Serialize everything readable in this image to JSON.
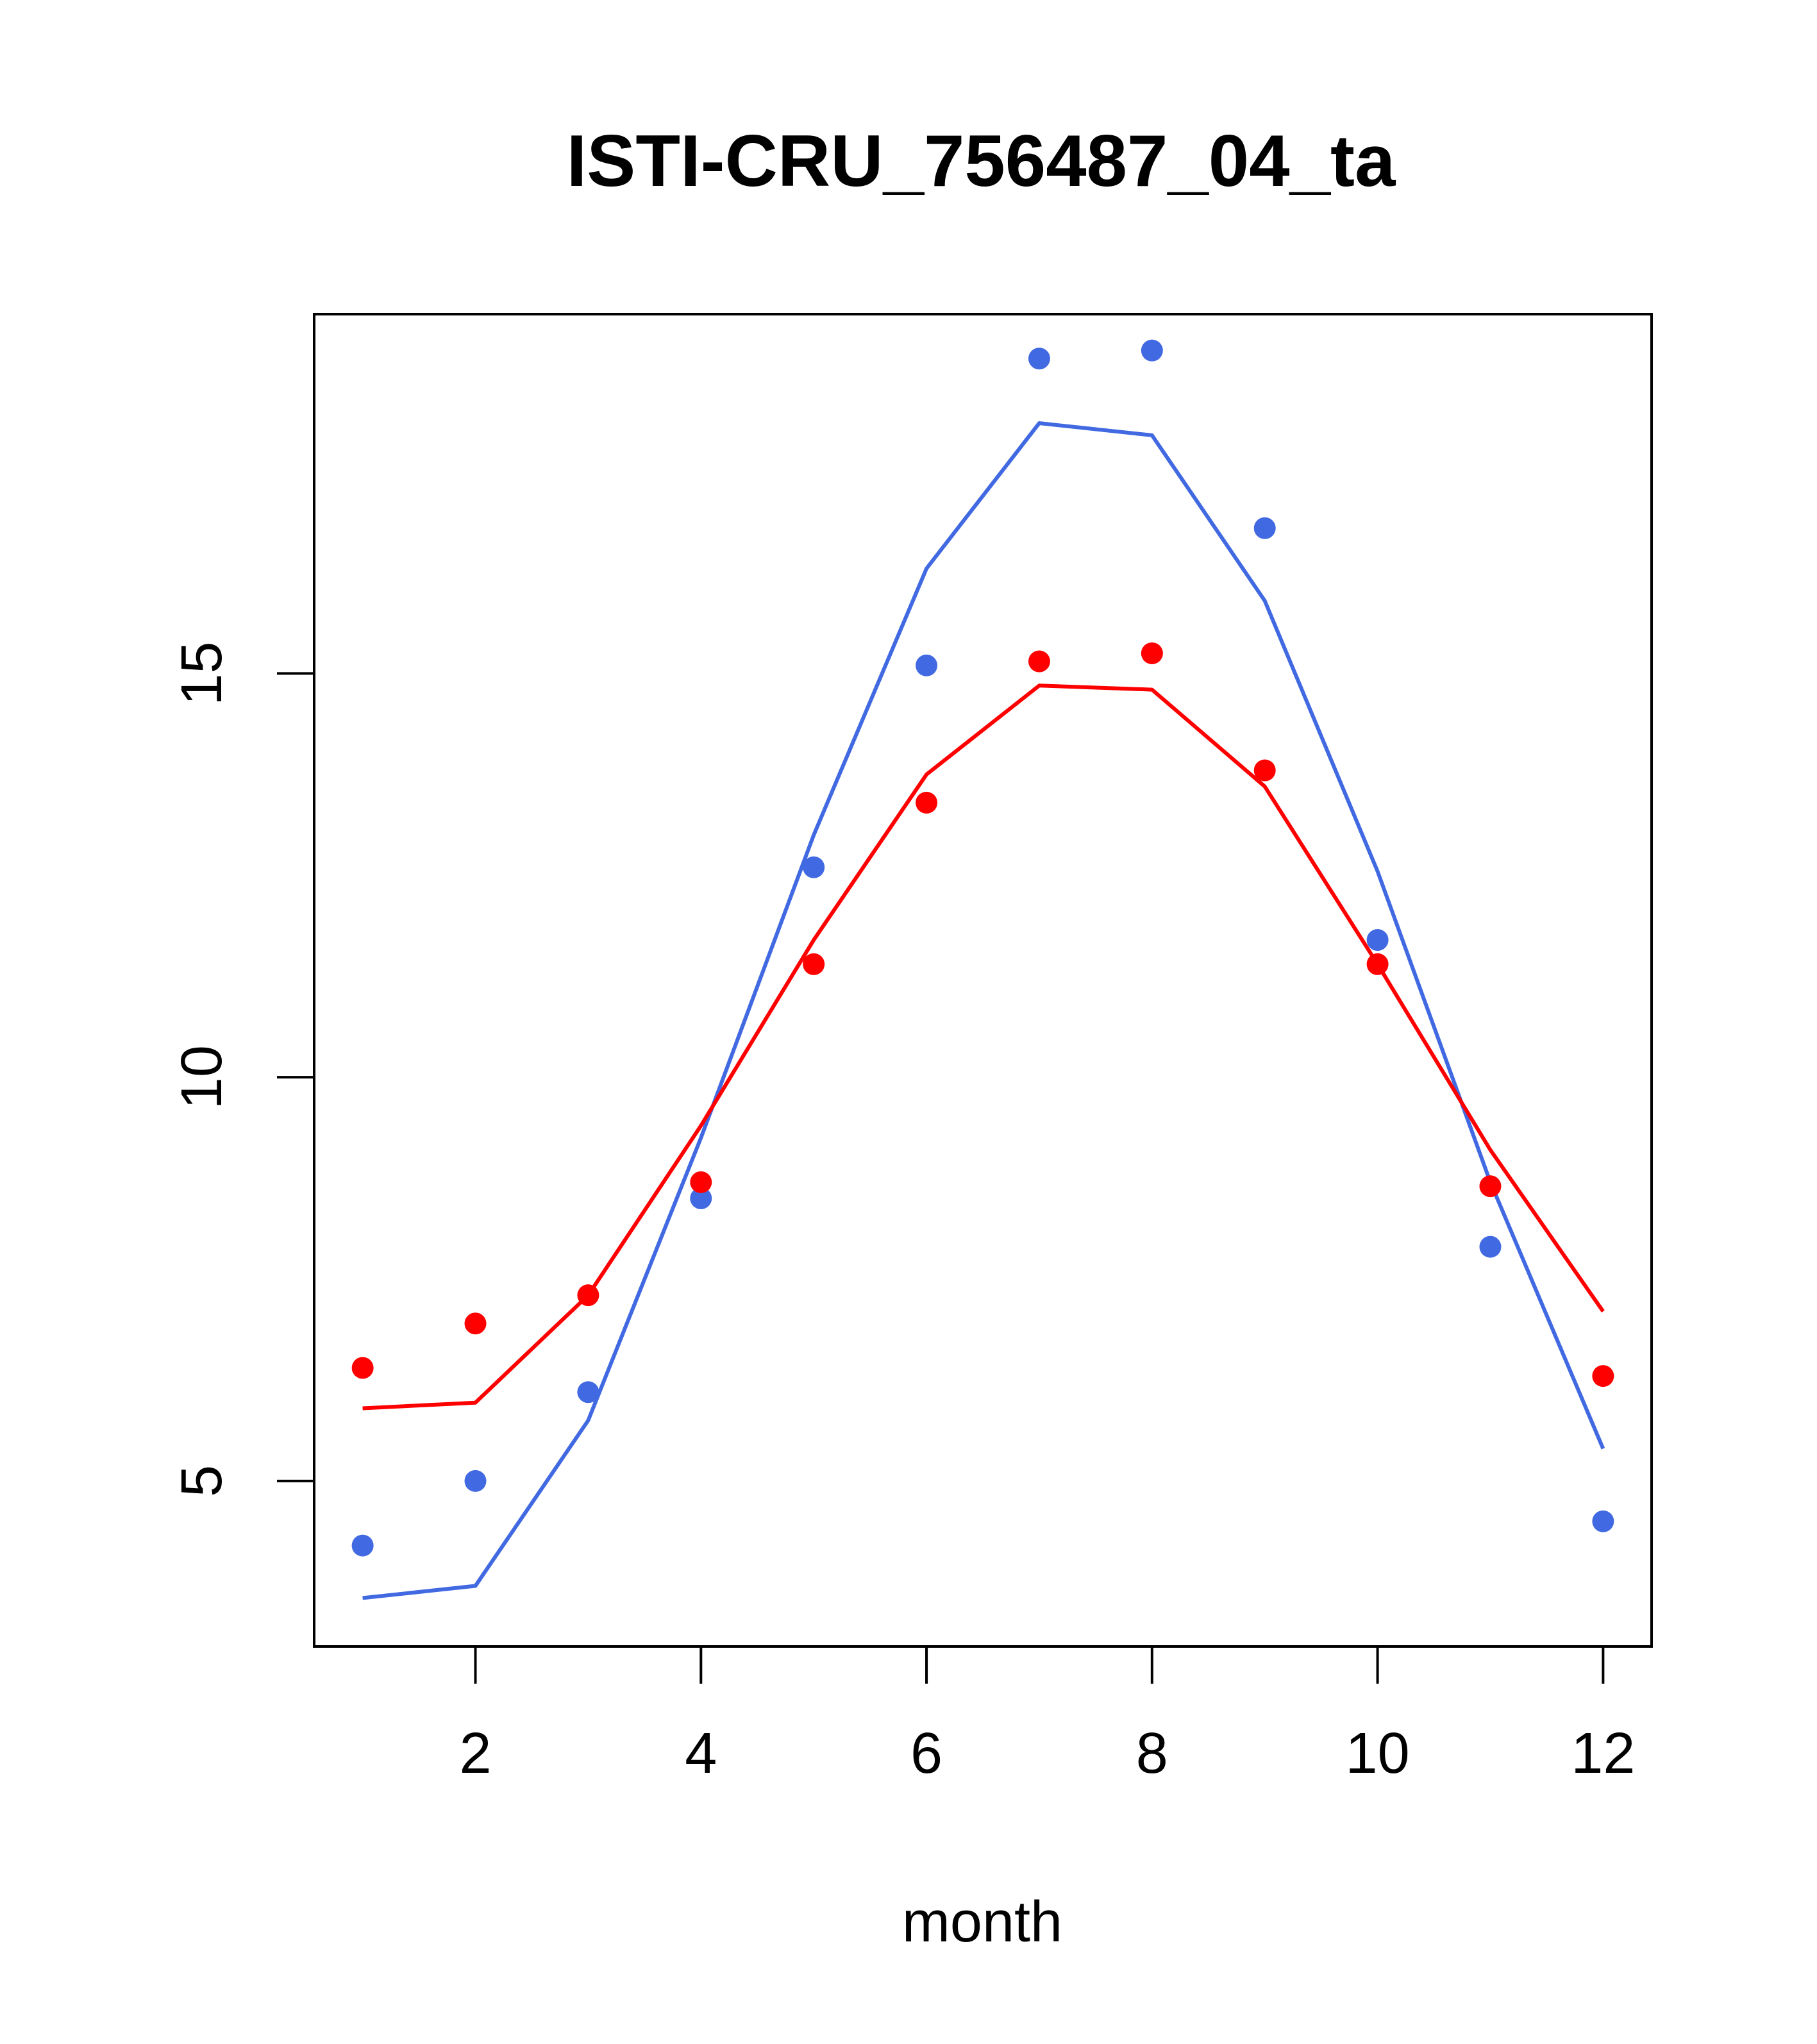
{
  "chart_data": {
    "type": "line",
    "title": "ISTI-CRU_756487_04_ta",
    "xlabel": "month",
    "ylabel": "",
    "xlim": [
      0.57,
      12.43
    ],
    "ylim": [
      2.95,
      19.45
    ],
    "x_ticks": [
      2,
      4,
      6,
      8,
      10,
      12
    ],
    "y_ticks": [
      5,
      10,
      15
    ],
    "grid": false,
    "series": [
      {
        "kind": "points",
        "color": "#4169E1",
        "x": [
          1,
          2,
          3,
          4,
          5,
          6,
          7,
          8,
          9,
          10,
          11,
          12
        ],
        "y": [
          4.2,
          5.0,
          6.1,
          8.5,
          12.6,
          15.1,
          18.9,
          19.0,
          16.8,
          11.7,
          7.9,
          4.5
        ]
      },
      {
        "kind": "line",
        "color": "#4169E1",
        "x": [
          1,
          2,
          3,
          4,
          5,
          6,
          7,
          8,
          9,
          10,
          11,
          12
        ],
        "y": [
          3.55,
          3.7,
          5.75,
          9.25,
          13.0,
          16.3,
          18.1,
          17.95,
          15.9,
          12.55,
          8.7,
          5.4
        ]
      },
      {
        "kind": "points",
        "color": "#FF0000",
        "x": [
          1,
          2,
          3,
          4,
          5,
          6,
          7,
          8,
          9,
          10,
          11,
          12
        ],
        "y": [
          6.4,
          6.95,
          7.3,
          8.7,
          11.4,
          13.4,
          15.15,
          15.25,
          13.8,
          11.4,
          8.65,
          6.3
        ]
      },
      {
        "kind": "line",
        "color": "#FF0000",
        "x": [
          1,
          2,
          3,
          4,
          5,
          6,
          7,
          8,
          9,
          10,
          11,
          12
        ],
        "y": [
          5.9,
          5.97,
          7.3,
          9.4,
          11.7,
          13.75,
          14.85,
          14.8,
          13.6,
          11.4,
          9.1,
          7.1
        ]
      }
    ]
  }
}
